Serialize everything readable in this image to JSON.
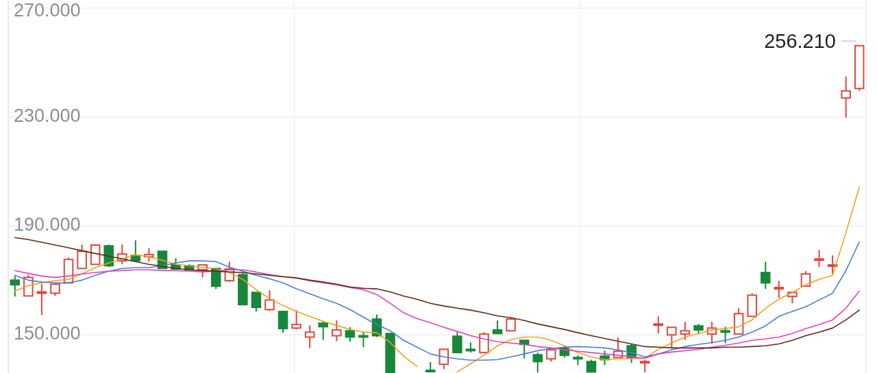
{
  "chart_data": {
    "type": "candlestick",
    "categories": [
      null,
      null,
      null,
      null,
      null,
      null,
      null,
      null,
      null,
      null,
      null,
      null,
      null,
      null,
      null,
      null,
      null,
      null,
      null,
      null,
      null,
      null,
      null,
      null,
      null,
      null,
      null,
      null,
      null,
      null,
      null,
      null,
      null,
      null,
      null,
      null,
      null,
      null,
      null,
      null,
      null,
      null,
      null,
      null,
      null,
      null,
      null,
      null,
      null,
      null,
      null,
      null,
      null,
      null,
      null,
      null,
      null,
      null,
      null,
      null,
      null,
      null,
      null,
      null
    ],
    "ohlc": [
      [
        170.1,
        171.6,
        164.1,
        168.4
      ],
      [
        164.3,
        172.1,
        164.3,
        171.1
      ],
      [
        165.3,
        168.6,
        157.3,
        165.8
      ],
      [
        165.3,
        169.1,
        164.3,
        168.6
      ],
      [
        169.1,
        178.4,
        169.1,
        177.7
      ],
      [
        174.4,
        183.2,
        174.4,
        180.7
      ],
      [
        175.9,
        183.0,
        175.9,
        183.0
      ],
      [
        182.7,
        183.2,
        174.9,
        175.4
      ],
      [
        177.2,
        183.2,
        175.9,
        179.7
      ],
      [
        179.2,
        184.7,
        176.7,
        177.2
      ],
      [
        178.7,
        181.9,
        176.9,
        179.5
      ],
      [
        180.7,
        180.7,
        174.4,
        174.4
      ],
      [
        175.7,
        178.2,
        174.2,
        174.2
      ],
      [
        175.4,
        175.9,
        173.9,
        173.9
      ],
      [
        173.9,
        175.9,
        171.1,
        175.7
      ],
      [
        174.4,
        174.7,
        166.9,
        167.9
      ],
      [
        169.9,
        176.9,
        169.4,
        174.2
      ],
      [
        172.1,
        172.9,
        161.1,
        161.1
      ],
      [
        165.6,
        165.6,
        158.6,
        160.1
      ],
      [
        159.3,
        166.4,
        158.8,
        162.8
      ],
      [
        158.6,
        158.6,
        150.8,
        152.3
      ],
      [
        152.5,
        159.1,
        152.0,
        153.8
      ],
      [
        149.2,
        153.5,
        145.2,
        151.0
      ],
      [
        154.3,
        155.0,
        148.2,
        153.0
      ],
      [
        149.7,
        155.3,
        147.7,
        151.8
      ],
      [
        151.5,
        152.8,
        147.5,
        149.2
      ],
      [
        149.7,
        151.3,
        145.5,
        149.2
      ],
      [
        155.8,
        157.5,
        149.2,
        149.7
      ],
      [
        150.5,
        150.8,
        136.0,
        136.2
      ],
      null,
      null,
      [
        137.0,
        140.0,
        136.2,
        136.5
      ],
      [
        139.2,
        144.7,
        137.4,
        144.7
      ],
      [
        149.5,
        151.0,
        143.5,
        143.5
      ],
      [
        144.7,
        147.2,
        143.5,
        144.2
      ],
      [
        143.5,
        151.0,
        143.5,
        150.3
      ],
      [
        151.8,
        155.3,
        150.5,
        150.5
      ],
      [
        151.5,
        156.5,
        151.5,
        155.8
      ],
      [
        148.0,
        148.0,
        141.4,
        146.5
      ],
      [
        142.7,
        143.5,
        136.2,
        140.2
      ],
      [
        141.2,
        145.2,
        140.2,
        144.5
      ],
      [
        145.2,
        146.0,
        141.7,
        142.5
      ],
      [
        141.7,
        142.5,
        138.9,
        141.2
      ],
      [
        140.2,
        140.9,
        136.2,
        136.4
      ],
      [
        142.2,
        144.2,
        138.9,
        140.9
      ],
      [
        141.7,
        149.0,
        141.7,
        144.0
      ],
      [
        146.0,
        146.7,
        139.7,
        141.7
      ],
      [
        139.7,
        140.9,
        136.3,
        140.2
      ],
      [
        153.5,
        156.8,
        150.5,
        154.0
      ],
      [
        150.0,
        152.8,
        145.2,
        152.8
      ],
      [
        150.3,
        154.8,
        148.2,
        151.5
      ],
      [
        153.3,
        154.0,
        150.3,
        151.8
      ],
      [
        150.3,
        154.8,
        146.7,
        152.5
      ],
      [
        151.5,
        153.0,
        147.0,
        151.0
      ],
      [
        150.3,
        159.8,
        150.3,
        157.8
      ],
      [
        156.8,
        165.3,
        156.8,
        164.6
      ],
      [
        172.9,
        176.9,
        166.9,
        169.1
      ],
      [
        166.9,
        169.9,
        163.6,
        167.4
      ],
      [
        164.1,
        165.6,
        161.6,
        165.6
      ],
      [
        167.9,
        173.4,
        167.9,
        172.4
      ],
      [
        177.4,
        181.2,
        174.9,
        177.9
      ],
      [
        175.2,
        179.2,
        172.4,
        175.7
      ],
      [
        237.0,
        244.9,
        229.8,
        239.6
      ],
      [
        240.5,
        256.21,
        239.7,
        256.21
      ]
    ],
    "colors": [
      "#17873b",
      "#e0463c",
      "#e0463c",
      "#e0463c",
      "#e0463c",
      "#e0463c",
      "#e0463c",
      "#17873b",
      "#e0463c",
      "#17873b",
      "#e0463c",
      "#17873b",
      "#17873b",
      "#17873b",
      "#e0463c",
      "#17873b",
      "#e0463c",
      "#17873b",
      "#17873b",
      "#e0463c",
      "#17873b",
      "#e0463c",
      "#e0463c",
      "#17873b",
      "#e0463c",
      "#17873b",
      "#17873b",
      "#17873b",
      "#17873b",
      null,
      null,
      "#17873b",
      "#e0463c",
      "#17873b",
      "#17873b",
      "#e0463c",
      "#17873b",
      "#e0463c",
      "#17873b",
      "#17873b",
      "#e0463c",
      "#17873b",
      "#17873b",
      "#17873b",
      "#17873b",
      "#e0463c",
      "#17873b",
      "#e0463c",
      "#e0463c",
      "#e0463c",
      "#e0463c",
      "#17873b",
      "#e0463c",
      "#17873b",
      "#e0463c",
      "#e0463c",
      "#17873b",
      "#e0463c",
      "#e0463c",
      "#e0463c",
      "#e0463c",
      "#e0463c",
      "#e0463c",
      "#e0463c"
    ],
    "series": [
      {
        "type": "line",
        "color": "#f0a020",
        "values": [
          166.1,
          168.1,
          169.1,
          169.9,
          170.4,
          172.4,
          174.7,
          176.4,
          177.9,
          179.4,
          178.7,
          177.4,
          175.9,
          175.4,
          174.7,
          174.4,
          172.9,
          170.4,
          166.6,
          163.3,
          160.8,
          158.6,
          156.8,
          155.0,
          153.5,
          152.0,
          151.0,
          150.8,
          147.2,
          142.2,
          138.4,
          null,
          null,
          136.4,
          139.4,
          142.5,
          146.0,
          148.2,
          149.2,
          149.2,
          148.0,
          146.0,
          143.5,
          141.9,
          140.9,
          141.2,
          141.2,
          141.4,
          144.7,
          147.0,
          149.2,
          150.5,
          151.8,
          152.3,
          153.0,
          155.5,
          159.8,
          163.1,
          165.6,
          168.4,
          170.4,
          171.9,
          187.5,
          204.3
        ]
      },
      {
        "type": "line",
        "color": "#4a7fd0",
        "values": [
          171.9,
          170.1,
          169.4,
          169.1,
          169.1,
          170.1,
          171.9,
          173.4,
          174.4,
          174.7,
          174.7,
          175.4,
          176.4,
          177.2,
          177.2,
          176.9,
          174.9,
          173.4,
          171.9,
          170.6,
          169.1,
          166.9,
          165.1,
          163.3,
          161.6,
          159.3,
          156.5,
          153.8,
          151.5,
          148.0,
          145.5,
          143.0,
          141.9,
          141.2,
          140.7,
          140.7,
          140.9,
          141.9,
          143.0,
          144.2,
          145.0,
          145.5,
          145.7,
          145.5,
          145.2,
          144.5,
          143.5,
          141.9,
          143.0,
          144.5,
          145.7,
          146.5,
          147.2,
          148.0,
          149.2,
          151.0,
          153.3,
          156.8,
          158.6,
          160.3,
          162.8,
          165.3,
          173.6,
          184.2
        ]
      },
      {
        "type": "line",
        "color": "#e040c0",
        "values": [
          173.6,
          172.6,
          171.6,
          171.1,
          171.6,
          172.4,
          172.9,
          173.4,
          173.6,
          173.9,
          173.9,
          173.6,
          173.6,
          173.4,
          173.1,
          173.4,
          173.9,
          173.9,
          173.1,
          172.1,
          171.4,
          170.9,
          169.9,
          169.1,
          168.4,
          167.4,
          166.6,
          164.8,
          161.6,
          158.1,
          156.0,
          154.5,
          152.8,
          151.3,
          149.7,
          148.5,
          147.5,
          147.0,
          146.5,
          145.7,
          145.2,
          144.5,
          144.0,
          143.5,
          143.0,
          142.5,
          142.0,
          141.4,
          143.0,
          143.7,
          144.2,
          144.7,
          145.5,
          146.2,
          147.0,
          148.0,
          148.5,
          149.2,
          150.5,
          152.3,
          153.8,
          155.5,
          159.8,
          166.1
        ]
      },
      {
        "type": "line",
        "color": "#5a2a1a",
        "values": [
          185.7,
          185.0,
          184.0,
          183.0,
          182.0,
          180.9,
          179.9,
          178.9,
          177.9,
          176.9,
          175.9,
          175.2,
          174.4,
          173.9,
          173.6,
          173.4,
          173.1,
          172.9,
          172.4,
          171.9,
          171.4,
          170.9,
          170.1,
          169.4,
          168.6,
          167.6,
          167.1,
          166.9,
          165.8,
          164.3,
          163.1,
          161.6,
          160.6,
          159.8,
          159.1,
          158.1,
          157.0,
          156.3,
          155.3,
          154.0,
          153.0,
          152.0,
          150.8,
          149.7,
          148.7,
          147.7,
          146.7,
          145.7,
          145.5,
          145.2,
          145.2,
          145.2,
          145.2,
          145.5,
          145.5,
          145.7,
          146.0,
          146.7,
          148.0,
          149.7,
          151.0,
          152.5,
          155.5,
          159.1
        ]
      }
    ],
    "ylim": [
      136,
      273
    ],
    "yticks": [
      {
        "value": 150,
        "label": "150.000"
      },
      {
        "value": 190,
        "label": "190.000"
      },
      {
        "value": 230,
        "label": "230.000"
      },
      {
        "value": 270,
        "label": "270.000"
      }
    ],
    "grid": true,
    "annotations": [
      "256.210"
    ]
  }
}
